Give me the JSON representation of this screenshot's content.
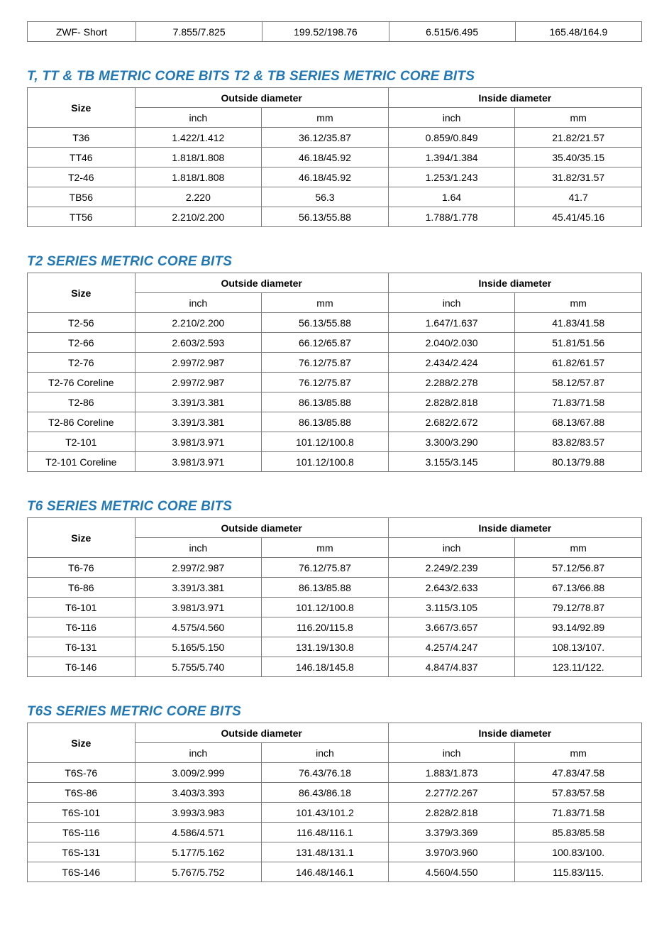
{
  "topTable": {
    "columns": [
      "col1",
      "col2",
      "col3",
      "col4",
      "col5"
    ],
    "rows": [
      [
        "ZWF- Short",
        "7.855/7.825",
        "199.52/198.76",
        "6.515/6.495",
        "165.48/164.9"
      ]
    ]
  },
  "tables": [
    {
      "title": "T, TT & TB METRIC CORE BITS T2 & TB SERIES METRIC CORE BITS",
      "sizeHeader": "Size",
      "groupHeaders": [
        "Outside diameter",
        "Inside diameter"
      ],
      "subHeaders": [
        "inch",
        "mm",
        "inch",
        "mm"
      ],
      "rows": [
        [
          "T36",
          "1.422/1.412",
          "36.12/35.87",
          "0.859/0.849",
          "21.82/21.57"
        ],
        [
          "TT46",
          "1.818/1.808",
          "46.18/45.92",
          "1.394/1.384",
          "35.40/35.15"
        ],
        [
          "T2-46",
          "1.818/1.808",
          "46.18/45.92",
          "1.253/1.243",
          "31.82/31.57"
        ],
        [
          "TB56",
          "2.220",
          "56.3",
          "1.64",
          "41.7"
        ],
        [
          "TT56",
          "2.210/2.200",
          "56.13/55.88",
          "1.788/1.778",
          "45.41/45.16"
        ]
      ]
    },
    {
      "title": "T2 SERIES METRIC CORE BITS",
      "sizeHeader": "Size",
      "groupHeaders": [
        "Outside diameter",
        "Inside diameter"
      ],
      "subHeaders": [
        "inch",
        "mm",
        "inch",
        "mm"
      ],
      "rows": [
        [
          "T2-56",
          "2.210/2.200",
          "56.13/55.88",
          "1.647/1.637",
          "41.83/41.58"
        ],
        [
          "T2-66",
          "2.603/2.593",
          "66.12/65.87",
          "2.040/2.030",
          "51.81/51.56"
        ],
        [
          "T2-76",
          "2.997/2.987",
          "76.12/75.87",
          "2.434/2.424",
          "61.82/61.57"
        ],
        [
          "T2-76 Coreline",
          "2.997/2.987",
          "76.12/75.87",
          "2.288/2.278",
          "58.12/57.87"
        ],
        [
          "T2-86",
          "3.391/3.381",
          "86.13/85.88",
          "2.828/2.818",
          "71.83/71.58"
        ],
        [
          "T2-86 Coreline",
          "3.391/3.381",
          "86.13/85.88",
          "2.682/2.672",
          "68.13/67.88"
        ],
        [
          "T2-101",
          "3.981/3.971",
          "101.12/100.8",
          "3.300/3.290",
          "83.82/83.57"
        ],
        [
          "T2-101 Coreline",
          "3.981/3.971",
          "101.12/100.8",
          "3.155/3.145",
          "80.13/79.88"
        ]
      ]
    },
    {
      "title": "T6 SERIES METRIC CORE BITS",
      "sizeHeader": "Size",
      "groupHeaders": [
        "Outside diameter",
        "Inside diameter"
      ],
      "subHeaders": [
        "inch",
        "mm",
        "inch",
        "mm"
      ],
      "rows": [
        [
          "T6-76",
          "2.997/2.987",
          "76.12/75.87",
          "2.249/2.239",
          "57.12/56.87"
        ],
        [
          "T6-86",
          "3.391/3.381",
          "86.13/85.88",
          "2.643/2.633",
          "67.13/66.88"
        ],
        [
          "T6-101",
          "3.981/3.971",
          "101.12/100.8",
          "3.115/3.105",
          "79.12/78.87"
        ],
        [
          "T6-116",
          "4.575/4.560",
          "116.20/115.8",
          "3.667/3.657",
          "93.14/92.89"
        ],
        [
          "T6-131",
          "5.165/5.150",
          "131.19/130.8",
          "4.257/4.247",
          "108.13/107."
        ],
        [
          "T6-146",
          "5.755/5.740",
          "146.18/145.8",
          "4.847/4.837",
          "123.11/122."
        ]
      ]
    },
    {
      "title": "T6S SERIES METRIC CORE BITS",
      "sizeHeader": "Size",
      "groupHeaders": [
        "Outside diameter",
        "Inside diameter"
      ],
      "subHeaders": [
        "inch",
        "inch",
        "inch",
        "mm"
      ],
      "rows": [
        [
          "T6S-76",
          "3.009/2.999",
          "76.43/76.18",
          "1.883/1.873",
          "47.83/47.58"
        ],
        [
          "T6S-86",
          "3.403/3.393",
          "86.43/86.18",
          "2.277/2.267",
          "57.83/57.58"
        ],
        [
          "T6S-101",
          "3.993/3.983",
          "101.43/101.2",
          "2.828/2.818",
          "71.83/71.58"
        ],
        [
          "T6S-116",
          "4.586/4.571",
          "116.48/116.1",
          "3.379/3.369",
          "85.83/85.58"
        ],
        [
          "T6S-131",
          "5.177/5.162",
          "131.48/131.1",
          "3.970/3.960",
          "100.83/100."
        ],
        [
          "T6S-146",
          "5.767/5.752",
          "146.48/146.1",
          "4.560/4.550",
          "115.83/115."
        ]
      ]
    }
  ],
  "styling": {
    "heading_color": "#2278b5",
    "border_color": "#7a7a7a",
    "body_font_size": 14,
    "heading_font_size": 19,
    "heading_italic": true,
    "heading_bold": true
  }
}
